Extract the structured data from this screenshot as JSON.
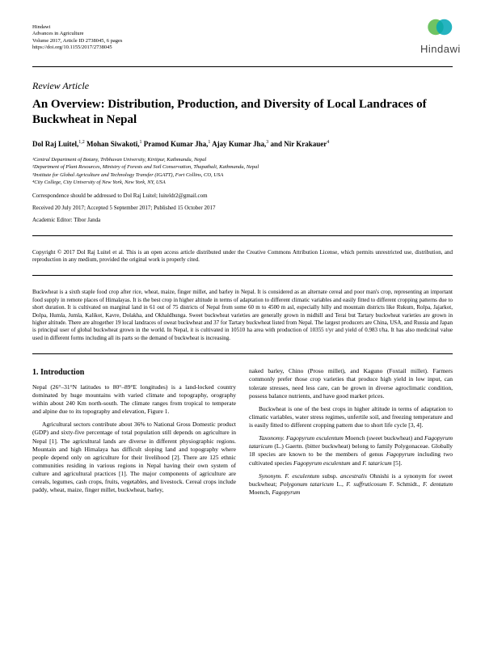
{
  "journal": {
    "publisher": "Hindawi",
    "name": "Advances in Agriculture",
    "volume_line": "Volume 2017, Article ID 2738045, 6 pages",
    "doi_line": "https://doi.org/10.1155/2017/2738045"
  },
  "logo": {
    "text": "Hindawi",
    "circle1_color": "#56b948",
    "circle2_color": "#00a7b5"
  },
  "article_type": "Review Article",
  "title": "An Overview: Distribution, Production, and Diversity of Local Landraces of Buckwheat in Nepal",
  "authors_html": "Dol Raj Luitel,<sup>1,2</sup> Mohan Siwakoti,<sup>1</sup> Pramod Kumar Jha,<sup>1</sup> Ajay Kumar Jha,<sup>3</sup> and Nir Krakauer<sup>4</sup>",
  "affiliations": [
    "¹Central Department of Botany, Tribhuvan University, Kirtipur, Kathmandu, Nepal",
    "²Department of Plant Resources, Ministry of Forests and Soil Conservation, Thapathali, Kathmandu, Nepal",
    "³Institute for Global Agriculture and Technology Transfer (IGATT), Fort Collins, CO, USA",
    "⁴City College, City University of New York, New York, NY, USA"
  ],
  "correspondence": "Correspondence should be addressed to Dol Raj Luitel; luiteldr2@gmail.com",
  "dates": "Received 20 July 2017; Accepted 5 September 2017; Published 15 October 2017",
  "editor": "Academic Editor: Tibor Janda",
  "copyright": "Copyright © 2017 Dol Raj Luitel et al. This is an open access article distributed under the Creative Commons Attribution License, which permits unrestricted use, distribution, and reproduction in any medium, provided the original work is properly cited.",
  "abstract": "Buckwheat is a sixth staple food crop after rice, wheat, maize, finger millet, and barley in Nepal. It is considered as an alternate cereal and poor man's crop, representing an important food supply in remote places of Himalayas. It is the best crop in higher altitude in terms of adaptation to different climatic variables and easily fitted to different cropping patterns due to short duration. It is cultivated on marginal land in 61 out of 75 districts of Nepal from some 60 m to 4500 m asl, especially hilly and mountain districts like Rukum, Rolpa, Jajarkot, Dolpa, Humla, Jumla, Kalikot, Kavre, Dolakha, and Okhaldhunga. Sweet buckwheat varieties are generally grown in midhill and Terai but Tartary buckwheat varieties are grown in higher altitude. There are altogether 19 local landraces of sweat buckwheat and 37 for Tartary buckwheat listed from Nepal. The largest producers are China, USA, and Russia and Japan is principal user of global buckwheat grown in the world. In Nepal, it is cultivated in 10510 ha area with production of 10355 t/yr and yield of 0.983 t/ha. It has also medicinal value used in different forms including all its parts so the demand of buckwheat is increasing.",
  "section_1_title": "1. Introduction",
  "body": {
    "col1": {
      "p1": "Nepal (26°–31°N latitudes to 80°–89°E longitudes) is a land-locked country dominated by huge mountains with varied climate and topography, orography within about 240 Km north-south. The climate ranges from tropical to temperate and alpine due to its topography and elevation, Figure 1.",
      "p2": "Agricultural sectors contribute about 36% to National Gross Domestic product (GDP) and sixty-five percentage of total population still depends on agriculture in Nepal [1]. The agricultural lands are diverse in different physiographic regions. Mountain and high Himalaya has difficult sloping land and topography where people depend only on agriculture for their livelihood [2]. There are 125 ethnic communities residing in various regions in Nepal having their own system of culture and agricultural practices [1]. The major components of agriculture are cereals, legumes, cash crops, fruits, vegetables, and livestock. Cereal crops include paddy, wheat, maize, finger millet, buckwheat, barley,"
    },
    "col2": {
      "p1": "naked barley, Chino (Proso millet), and Kaguno (Foxtail millet). Farmers commonly prefer those crop varieties that produce high yield in low input, can tolerate stresses, need less care, can be grown in diverse agroclimatic condition, possess balance nutrients, and have good market prices.",
      "p2": "Buckwheat is one of the best crops in higher altitude in terms of adaptation to climatic variables, water stress regimes, unfertile soil, and freezing temperature and is easily fitted to different cropping pattern due to short life cycle [3, 4].",
      "p3_html": "<span class=\"term\">Taxonomy. Fagopyrum esculentum</span> Moench (sweet buckwheat) and <span class=\"term\">Fagopyrum tataricum</span> (L.) Gaertn. (bitter buckwheat) belong to family Polygonaceae. Globally 18 species are known to be the members of genus <span class=\"term\">Fagopyrum</span> including two cultivated species <span class=\"term\">Fagopyrum esculentum</span> and <span class=\"term\">F. tataricum</span> [5].",
      "p4_html": "<span class=\"term\">Synonym. F. esculentum</span> subsp. <span class=\"term\">ancestralis</span> Ohnishi is a synonym for sweet buckwheat; <span class=\"term\">Polygonum tataricum</span> L., <span class=\"term\">F. suffruticosum</span> F. Schmidt., <span class=\"term\">F. dentatum</span> Moench, <span class=\"term\">Fagopyrum</span>"
    }
  }
}
